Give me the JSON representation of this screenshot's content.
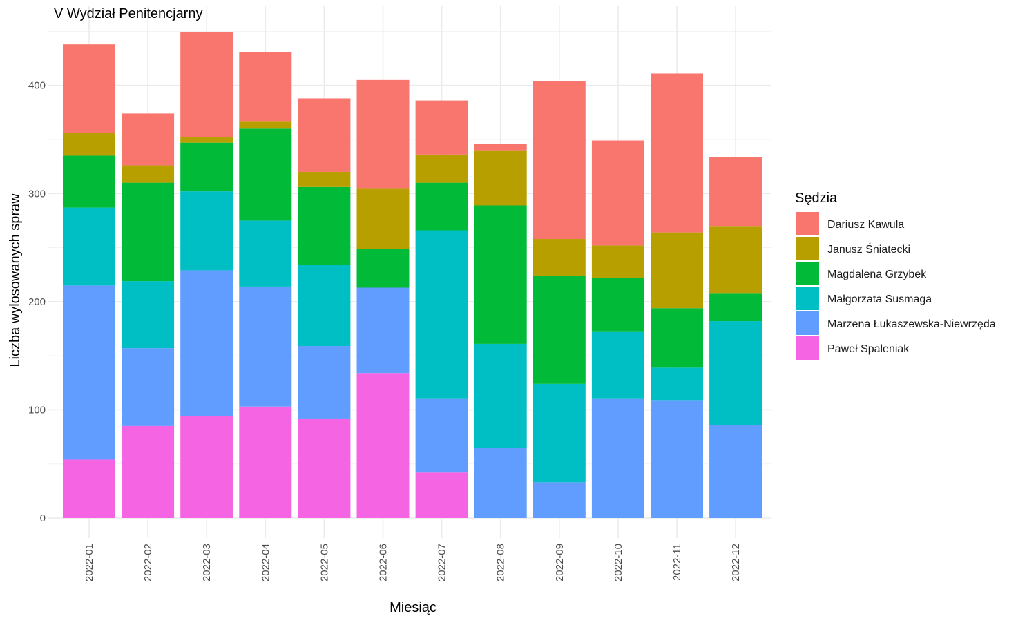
{
  "chart_data": {
    "type": "bar",
    "stacked": true,
    "title": "V Wydział Penitencjarny",
    "xlabel": "Miesiąc",
    "ylabel": "Liczba wylosowanych spraw",
    "ylim": [
      0,
      450
    ],
    "yticks": [
      0,
      100,
      200,
      300,
      400
    ],
    "grid": true,
    "legend_position": "right",
    "legend_title": "Sędzia",
    "categories": [
      "2022-01",
      "2022-02",
      "2022-03",
      "2022-04",
      "2022-05",
      "2022-06",
      "2022-07",
      "2022-08",
      "2022-09",
      "2022-10",
      "2022-11",
      "2022-12"
    ],
    "series": [
      {
        "name": "Paweł Spaleniak",
        "color": "#F564E3",
        "values": [
          54,
          85,
          94,
          103,
          92,
          134,
          42,
          0,
          0,
          0,
          0,
          0
        ]
      },
      {
        "name": "Marzena Łukaszewska-Niewrzęda",
        "color": "#619CFF",
        "values": [
          161,
          72,
          135,
          111,
          67,
          79,
          68,
          65,
          33,
          110,
          109,
          86
        ]
      },
      {
        "name": "Małgorzata Susmaga",
        "color": "#00BFC4",
        "values": [
          72,
          62,
          73,
          61,
          75,
          0,
          156,
          96,
          91,
          62,
          30,
          96
        ]
      },
      {
        "name": "Magdalena Grzybek",
        "color": "#00BA38",
        "values": [
          48,
          91,
          45,
          85,
          72,
          36,
          44,
          128,
          100,
          50,
          55,
          26
        ]
      },
      {
        "name": "Janusz Śniatecki",
        "color": "#B79F00",
        "values": [
          21,
          16,
          5,
          7,
          14,
          56,
          26,
          51,
          34,
          30,
          70,
          62
        ]
      },
      {
        "name": "Dariusz Kawula",
        "color": "#F8766D",
        "values": [
          82,
          48,
          97,
          64,
          68,
          100,
          50,
          6,
          146,
          97,
          147,
          64
        ]
      }
    ],
    "legend_order": [
      "Dariusz Kawula",
      "Janusz Śniatecki",
      "Magdalena Grzybek",
      "Małgorzata Susmaga",
      "Marzena Łukaszewska-Niewrzęda",
      "Paweł Spaleniak"
    ]
  }
}
